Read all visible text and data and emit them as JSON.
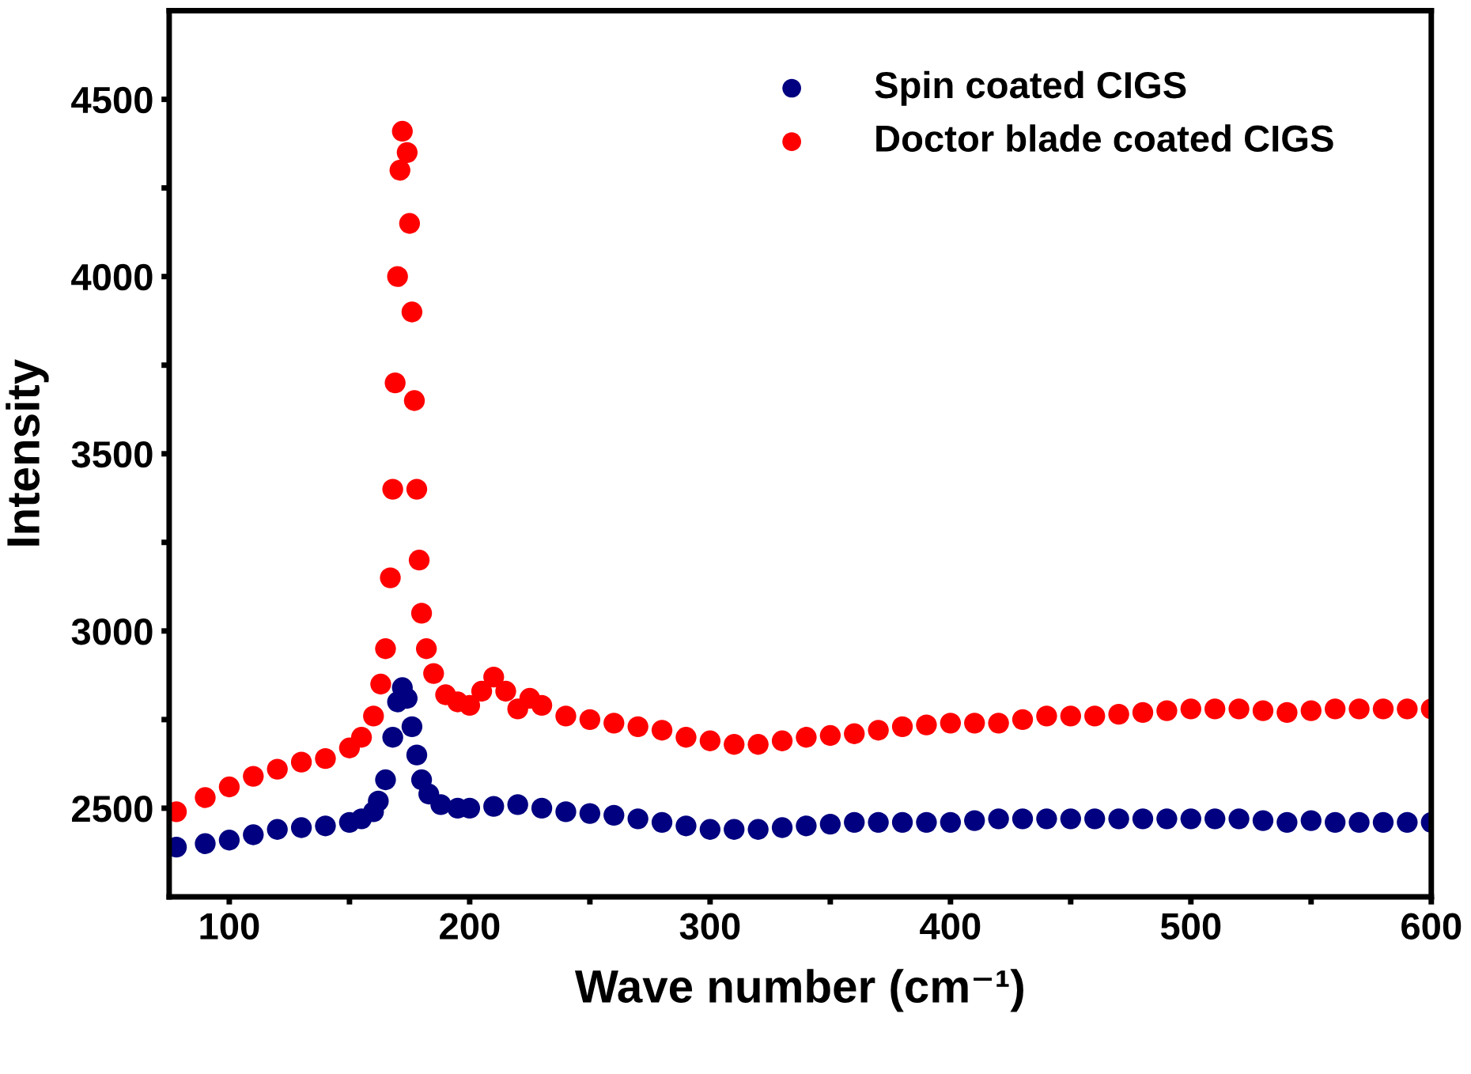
{
  "chart_data": {
    "type": "scatter",
    "xlabel": "Wave number (cm⁻¹)",
    "ylabel": "Intensity",
    "xlim": [
      75,
      600
    ],
    "ylim": [
      2250,
      4750
    ],
    "xticks": [
      100,
      {
        "value": 150,
        "label": null
      },
      200,
      {
        "value": 250,
        "label": null
      },
      300,
      {
        "value": 350,
        "label": null
      },
      400,
      {
        "value": 450,
        "label": null
      },
      500,
      {
        "value": 550,
        "label": null
      },
      600
    ],
    "yticks": [
      2500,
      {
        "value": 2750,
        "label": null
      },
      3000,
      {
        "value": 3250,
        "label": null
      },
      3500,
      {
        "value": 3750,
        "label": null
      },
      4000,
      {
        "value": 4250,
        "label": null
      },
      4500
    ],
    "grid": false,
    "legend": "top right",
    "marker": "circle",
    "series": [
      {
        "name": "Spin coated CIGS",
        "color": "#000080",
        "x": [
          78,
          90,
          100,
          110,
          120,
          130,
          140,
          150,
          155,
          160,
          162,
          165,
          168,
          170,
          172,
          174,
          176,
          178,
          180,
          183,
          188,
          195,
          200,
          210,
          220,
          230,
          240,
          250,
          260,
          270,
          280,
          290,
          300,
          310,
          320,
          330,
          340,
          350,
          360,
          370,
          380,
          390,
          400,
          410,
          420,
          430,
          440,
          450,
          460,
          470,
          480,
          490,
          500,
          510,
          520,
          530,
          540,
          550,
          560,
          570,
          580,
          590,
          600
        ],
        "values": [
          2390,
          2400,
          2410,
          2425,
          2440,
          2445,
          2450,
          2460,
          2470,
          2490,
          2520,
          2580,
          2700,
          2800,
          2840,
          2810,
          2730,
          2650,
          2580,
          2540,
          2510,
          2500,
          2500,
          2505,
          2510,
          2500,
          2490,
          2485,
          2480,
          2470,
          2460,
          2450,
          2440,
          2440,
          2440,
          2445,
          2450,
          2455,
          2460,
          2460,
          2460,
          2460,
          2460,
          2465,
          2470,
          2470,
          2470,
          2470,
          2470,
          2470,
          2470,
          2470,
          2470,
          2470,
          2470,
          2465,
          2460,
          2465,
          2460,
          2460,
          2460,
          2460,
          2460
        ]
      },
      {
        "name": "Doctor blade coated CIGS",
        "color": "#ff0000",
        "x": [
          78,
          90,
          100,
          110,
          120,
          130,
          140,
          150,
          155,
          160,
          163,
          165,
          167,
          168,
          169,
          170,
          171,
          172,
          174,
          175,
          176,
          177,
          178,
          179,
          180,
          182,
          185,
          190,
          195,
          200,
          205,
          210,
          215,
          220,
          225,
          230,
          240,
          250,
          260,
          270,
          280,
          290,
          300,
          310,
          320,
          330,
          340,
          350,
          360,
          370,
          380,
          390,
          400,
          410,
          420,
          430,
          440,
          450,
          460,
          470,
          480,
          490,
          500,
          510,
          520,
          530,
          540,
          550,
          560,
          570,
          580,
          590,
          600
        ],
        "values": [
          2490,
          2530,
          2560,
          2590,
          2610,
          2630,
          2640,
          2670,
          2700,
          2760,
          2850,
          2950,
          3150,
          3400,
          3700,
          4000,
          4300,
          4410,
          4350,
          4150,
          3900,
          3650,
          3400,
          3200,
          3050,
          2950,
          2880,
          2820,
          2800,
          2790,
          2830,
          2870,
          2830,
          2780,
          2810,
          2790,
          2760,
          2750,
          2740,
          2730,
          2720,
          2700,
          2690,
          2680,
          2680,
          2690,
          2700,
          2705,
          2710,
          2720,
          2730,
          2735,
          2740,
          2740,
          2740,
          2750,
          2760,
          2760,
          2760,
          2765,
          2770,
          2775,
          2780,
          2780,
          2780,
          2775,
          2770,
          2775,
          2780,
          2780,
          2780,
          2780,
          2780
        ]
      }
    ]
  }
}
